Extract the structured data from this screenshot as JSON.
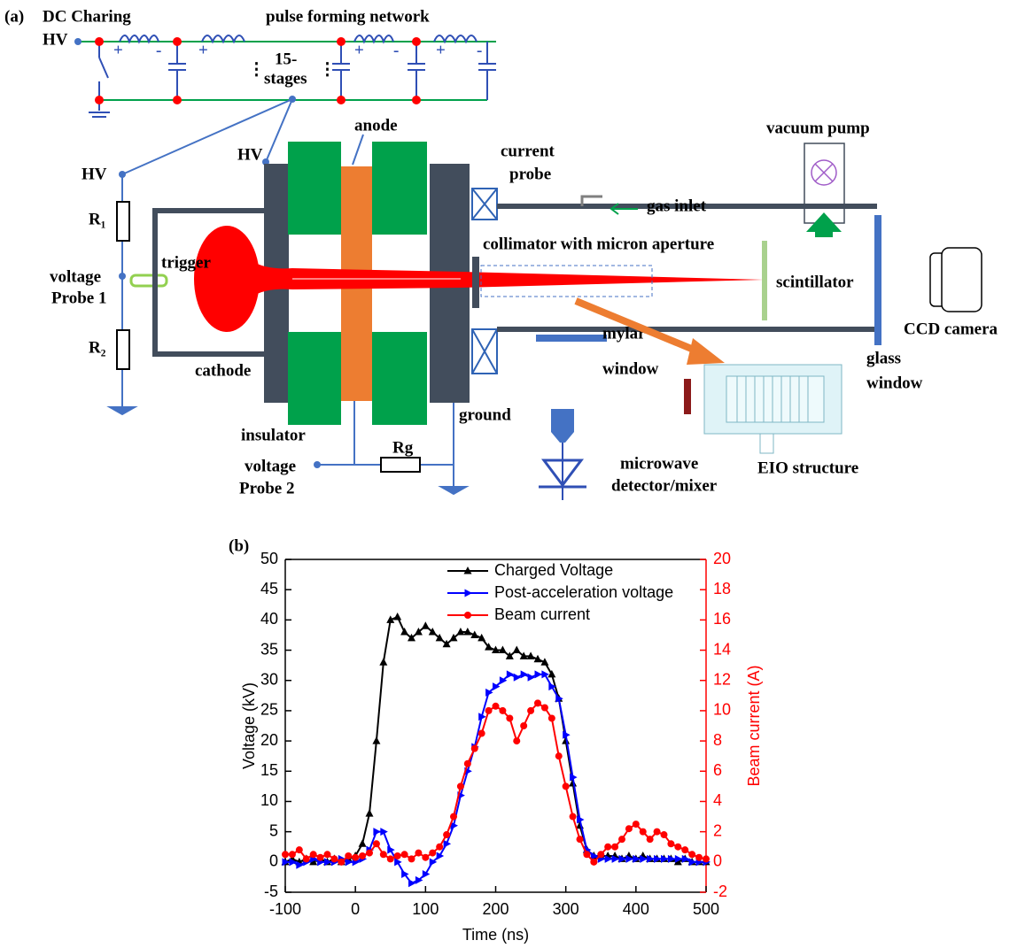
{
  "figure": {
    "panel_a": "(a)",
    "panel_b": "(b)"
  },
  "diagram": {
    "dc_charging": "DC Charing",
    "hv_top": "HV",
    "pfn": "pulse forming network",
    "stages": [
      "15-",
      "stages"
    ],
    "dots": "⋮",
    "plus": "+",
    "minus": "-",
    "anode": "anode",
    "hv_mid": "HV",
    "hv_left": "HV",
    "current_probe": [
      "current",
      "probe"
    ],
    "vacuum_pump": "vacuum pump",
    "gas_inlet": "gas inlet",
    "r1": "R₁",
    "trigger": "trigger",
    "collimator": "collimator with micron aperture",
    "voltage_probe_1": [
      "voltage",
      "Probe 1"
    ],
    "scintillator": "scintillator",
    "ccd": "CCD camera",
    "r2": "R₂",
    "mylar": [
      "mylar",
      "window"
    ],
    "glass": [
      "glass",
      "window"
    ],
    "cathode": "cathode",
    "eio": "EIO structure",
    "ground": "ground",
    "insulator": "insulator",
    "rg": "Rg",
    "voltage_probe_2": [
      "voltage",
      "Probe 2"
    ],
    "detector": [
      "microwave",
      "detector/mixer"
    ]
  },
  "chart_data": {
    "type": "line",
    "x_label": "Time (ns)",
    "y_label": "Voltage (kV)",
    "y2_label": "Beam current (A)",
    "y2_color": "#ff0000",
    "x": [
      -100,
      -90,
      -80,
      -70,
      -60,
      -50,
      -40,
      -30,
      -20,
      -10,
      0,
      10,
      20,
      30,
      40,
      50,
      60,
      70,
      80,
      90,
      100,
      110,
      120,
      130,
      140,
      150,
      160,
      170,
      180,
      190,
      200,
      210,
      220,
      230,
      240,
      250,
      260,
      270,
      280,
      290,
      300,
      310,
      320,
      330,
      340,
      350,
      360,
      370,
      380,
      390,
      400,
      410,
      420,
      430,
      440,
      450,
      460,
      470,
      480,
      490,
      500
    ],
    "series": [
      {
        "name": "Charged Voltage",
        "color": "#000000",
        "marker": "triangle-up",
        "values": [
          0,
          0.5,
          0,
          0.5,
          0,
          0.5,
          0,
          0.5,
          0,
          0.5,
          1,
          3,
          8,
          20,
          33,
          40,
          40.5,
          38,
          37,
          38,
          39,
          38,
          37,
          36,
          37,
          38,
          38,
          37.5,
          37,
          35.5,
          35,
          35,
          34,
          35,
          34,
          34,
          33.5,
          33,
          31,
          27,
          20,
          13,
          6,
          2,
          1,
          1,
          1,
          1,
          0.5,
          1,
          0.5,
          1,
          0.5,
          0.5,
          0.5,
          0.5,
          0,
          0.5,
          0,
          0,
          0
        ]
      },
      {
        "name": "Post-acceleration voltage",
        "color": "#0000ff",
        "marker": "triangle-right",
        "values": [
          0,
          0,
          -0.5,
          0,
          0.5,
          0,
          0,
          0,
          0.5,
          0,
          0,
          0.5,
          2,
          5,
          5,
          2,
          0,
          -2,
          -3.5,
          -3,
          -2,
          0,
          1,
          3,
          6,
          11,
          15,
          19,
          24,
          28,
          29,
          30,
          31,
          30.5,
          31,
          30.5,
          31,
          31,
          29,
          27,
          21,
          14,
          7,
          2,
          1,
          0.5,
          0.5,
          0.5,
          0.5,
          0.5,
          0.5,
          0.5,
          0.5,
          0.5,
          0.5,
          0.5,
          0.5,
          0.5,
          0,
          0,
          0
        ]
      },
      {
        "name": "Beam current",
        "color": "#ff0000",
        "marker": "circle",
        "axis": "y2",
        "values": [
          0.5,
          0.5,
          0.8,
          0.2,
          0.5,
          0.3,
          0.5,
          0.2,
          0,
          0.4,
          0.3,
          0.4,
          0.6,
          1.2,
          0.5,
          0.2,
          0.4,
          0.5,
          0.2,
          0.6,
          0.3,
          0.6,
          1,
          1.8,
          3,
          5,
          6.5,
          7.5,
          8.5,
          10,
          10.3,
          10,
          9.5,
          8,
          9,
          10,
          10.5,
          10.2,
          9.5,
          7,
          5,
          3,
          1.5,
          0.5,
          0,
          0.5,
          1,
          1,
          1.5,
          2.2,
          2.5,
          2,
          1.5,
          2,
          1.8,
          1.2,
          1,
          0.8,
          0.5,
          0.3,
          0.2
        ]
      }
    ],
    "xlim": [
      -100,
      500
    ],
    "xticks": [
      -100,
      0,
      100,
      200,
      300,
      400,
      500
    ],
    "ylim": [
      -5,
      50
    ],
    "yticks": [
      -5,
      0,
      5,
      10,
      15,
      20,
      25,
      30,
      35,
      40,
      45,
      50
    ],
    "y2lim": [
      -2,
      20
    ],
    "y2ticks": [
      -2,
      0,
      2,
      4,
      6,
      8,
      10,
      12,
      14,
      16,
      18,
      20
    ],
    "legend": "top"
  }
}
